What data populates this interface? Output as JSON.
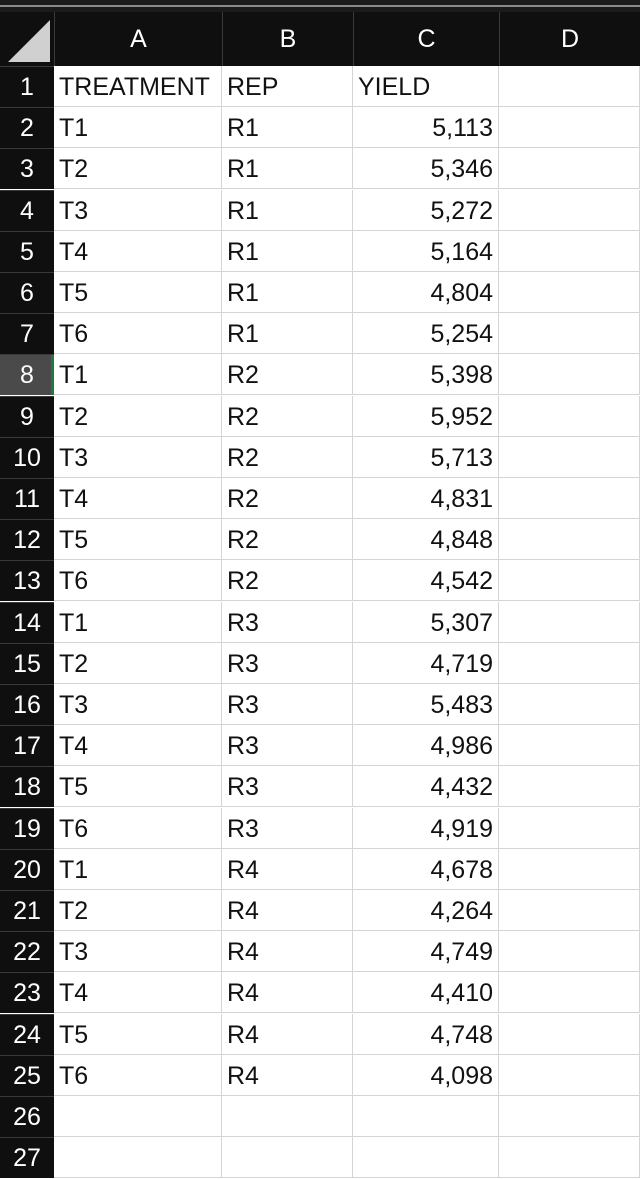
{
  "columns": [
    "A",
    "B",
    "C",
    "D"
  ],
  "row_numbers": [
    "1",
    "2",
    "3",
    "4",
    "5",
    "6",
    "7",
    "8",
    "9",
    "10",
    "11",
    "12",
    "13",
    "14",
    "15",
    "16",
    "17",
    "18",
    "19",
    "20",
    "21",
    "22",
    "23",
    "24",
    "25",
    "26",
    "27"
  ],
  "selected_row": 8,
  "rows": [
    [
      "TREATMENT",
      "REP",
      "YIELD",
      ""
    ],
    [
      "T1",
      "R1",
      "5,113",
      ""
    ],
    [
      "T2",
      "R1",
      "5,346",
      ""
    ],
    [
      "T3",
      "R1",
      "5,272",
      ""
    ],
    [
      "T4",
      "R1",
      "5,164",
      ""
    ],
    [
      "T5",
      "R1",
      "4,804",
      ""
    ],
    [
      "T6",
      "R1",
      "5,254",
      ""
    ],
    [
      "T1",
      "R2",
      "5,398",
      ""
    ],
    [
      "T2",
      "R2",
      "5,952",
      ""
    ],
    [
      "T3",
      "R2",
      "5,713",
      ""
    ],
    [
      "T4",
      "R2",
      "4,831",
      ""
    ],
    [
      "T5",
      "R2",
      "4,848",
      ""
    ],
    [
      "T6",
      "R2",
      "4,542",
      ""
    ],
    [
      "T1",
      "R3",
      "5,307",
      ""
    ],
    [
      "T2",
      "R3",
      "4,719",
      ""
    ],
    [
      "T3",
      "R3",
      "5,483",
      ""
    ],
    [
      "T4",
      "R3",
      "4,986",
      ""
    ],
    [
      "T5",
      "R3",
      "4,432",
      ""
    ],
    [
      "T6",
      "R3",
      "4,919",
      ""
    ],
    [
      "T1",
      "R4",
      "4,678",
      ""
    ],
    [
      "T2",
      "R4",
      "4,264",
      ""
    ],
    [
      "T3",
      "R4",
      "4,749",
      ""
    ],
    [
      "T4",
      "R4",
      "4,410",
      ""
    ],
    [
      "T5",
      "R4",
      "4,748",
      ""
    ],
    [
      "T6",
      "R4",
      "4,098",
      ""
    ],
    [
      "",
      "",
      "",
      ""
    ],
    [
      "",
      "",
      "",
      ""
    ]
  ]
}
